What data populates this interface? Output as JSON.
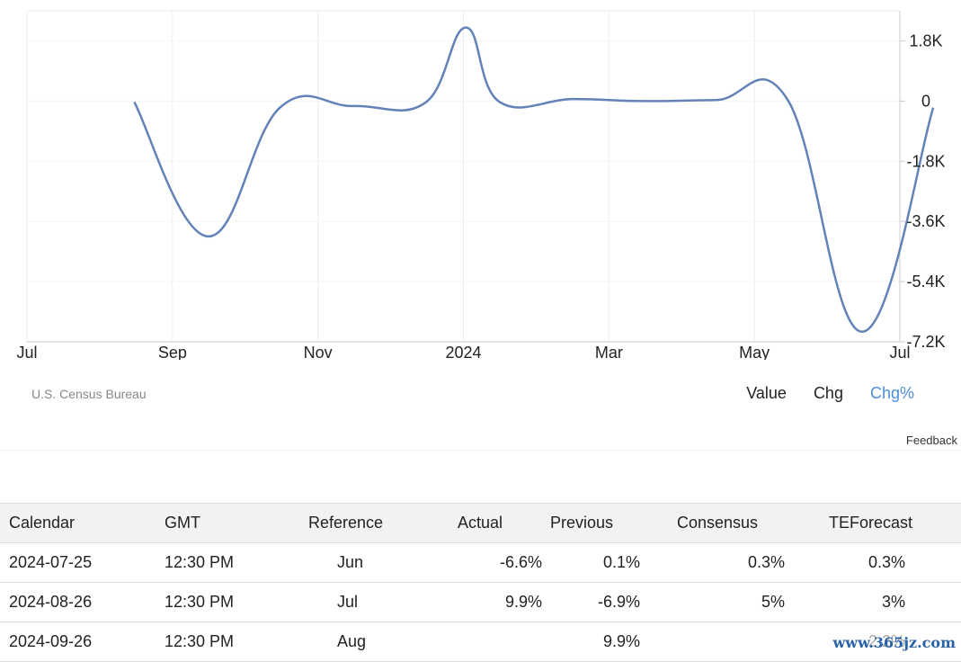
{
  "chart_data": {
    "type": "line",
    "x_labels": [
      "Jul",
      "Sep",
      "Nov",
      "2024",
      "Mar",
      "May",
      "Jul"
    ],
    "y_ticks": [
      1800,
      0,
      -1800,
      -3600,
      -5400,
      -7200
    ],
    "y_tick_labels": [
      "1.8K",
      "0",
      "-1.8K",
      "-3.6K",
      "-5.4K",
      "-7.2K"
    ],
    "ylim": [
      -7200,
      2700
    ],
    "grid": true,
    "series": [
      {
        "color": "#6383b8",
        "x": [
          "2023-08-15",
          "2023-09-15",
          "2023-10-15",
          "2023-11-15",
          "2023-12-15",
          "2024-01-01",
          "2024-01-15",
          "2024-02-15",
          "2024-03-15",
          "2024-04-15",
          "2024-05-15",
          "2024-06-15",
          "2024-07-15"
        ],
        "values": [
          -30,
          -4050,
          -200,
          -150,
          -50,
          2200,
          -20,
          60,
          0,
          30,
          30,
          -6900,
          -200
        ]
      }
    ]
  },
  "source": "U.S. Census Bureau",
  "modes": [
    "Value",
    "Chg",
    "Chg%"
  ],
  "active_mode": "Chg%",
  "feedback": "Feedback",
  "table": {
    "headers": [
      "Calendar",
      "GMT",
      "Reference",
      "Actual",
      "Previous",
      "Consensus",
      "TEForecast"
    ],
    "rows": [
      [
        "2024-07-25",
        "12:30 PM",
        "Jun",
        "-6.6%",
        "0.1%",
        "0.3%",
        "0.3%"
      ],
      [
        "2024-08-26",
        "12:30 PM",
        "Jul",
        "9.9%",
        "-6.9%",
        "5%",
        "3%"
      ],
      [
        "2024-09-26",
        "12:30 PM",
        "Aug",
        "",
        "9.9%",
        "",
        "2.2%"
      ]
    ]
  },
  "watermark": "www.365jz.com"
}
